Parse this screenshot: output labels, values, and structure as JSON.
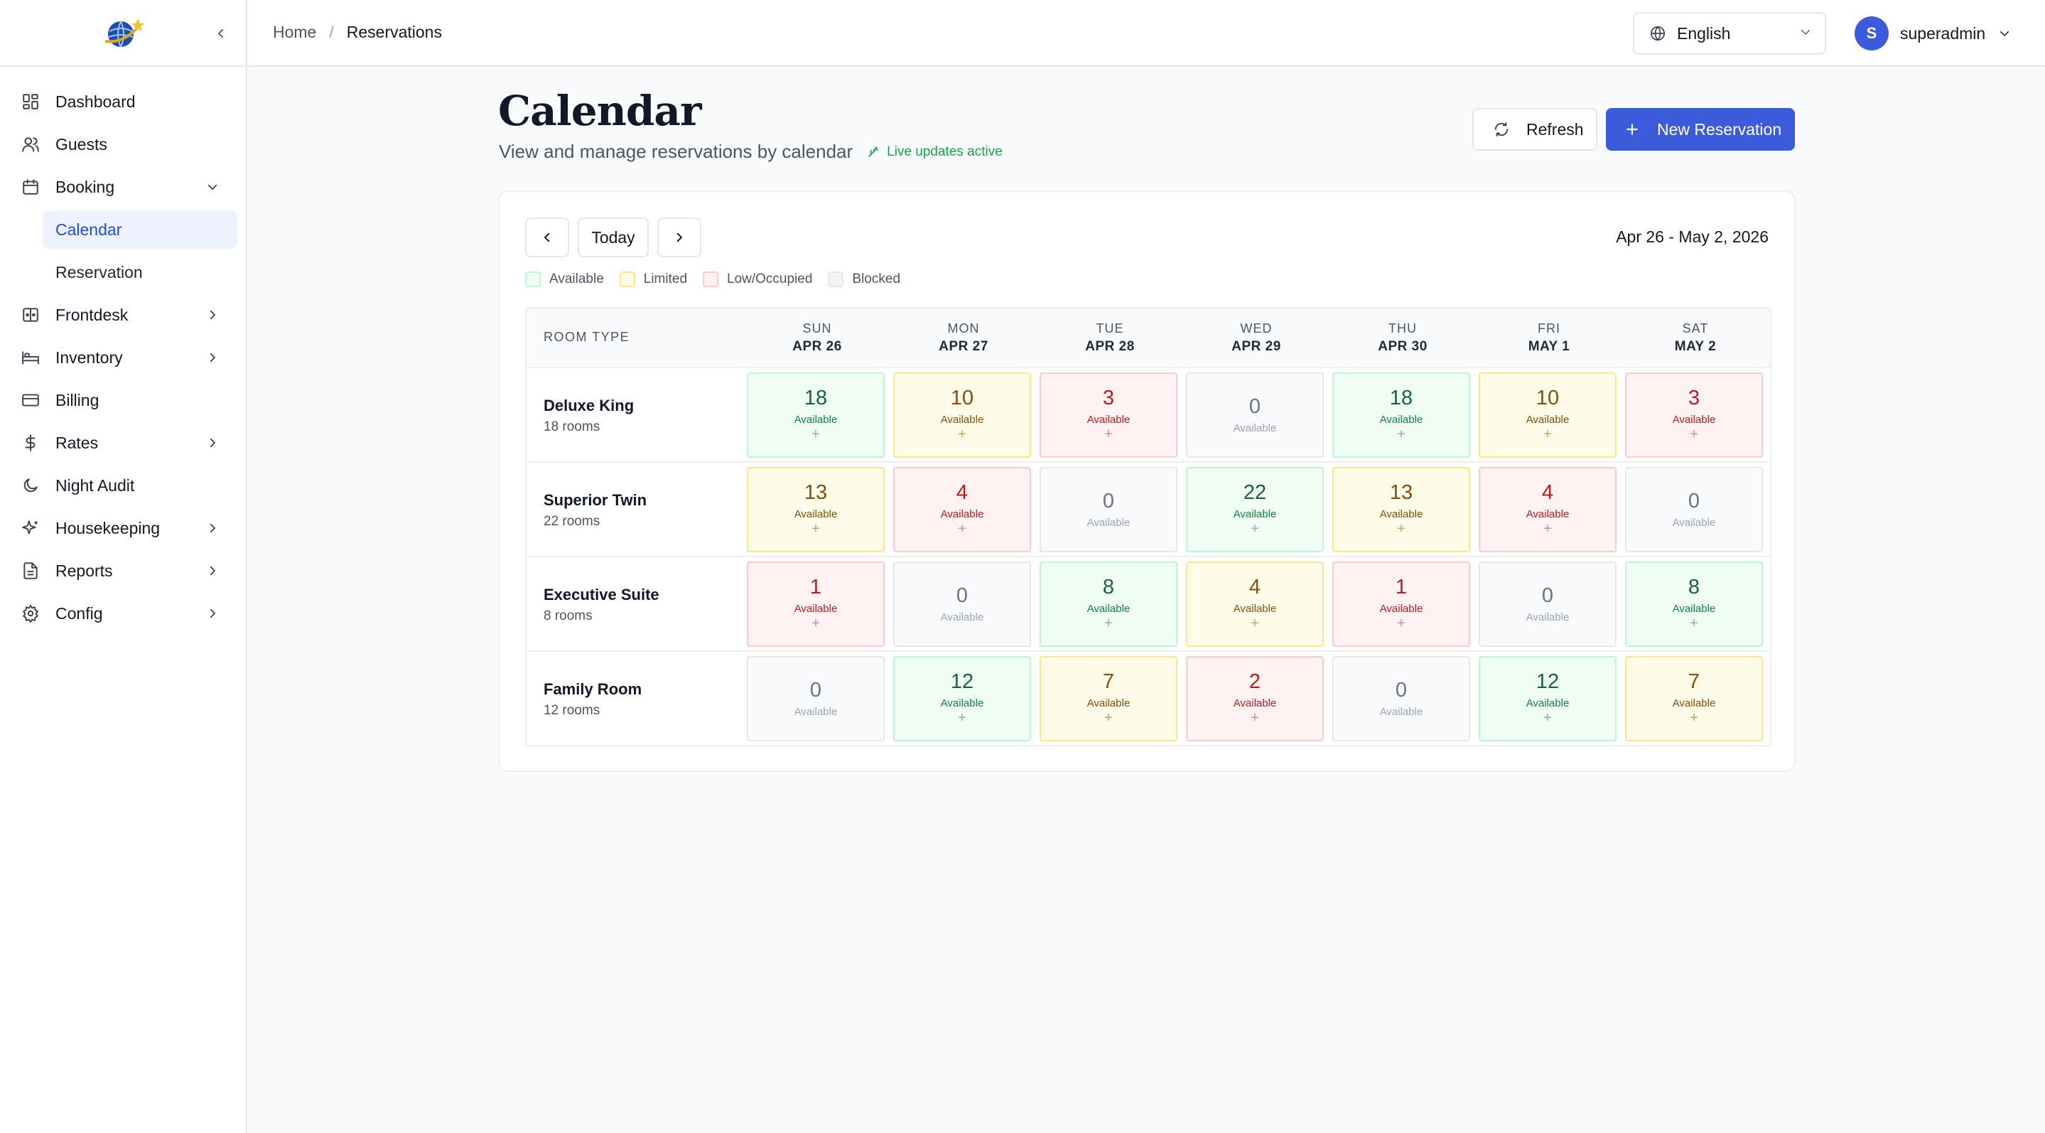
{
  "colors": {
    "primary": "#3b5bdb",
    "available": "#f0fdf4",
    "limited": "#fefce8",
    "low": "#fef2f2",
    "blocked": "#f9fafb",
    "live": "#16a34a"
  },
  "sidebar": {
    "items": [
      {
        "label": "Dashboard",
        "icon": "dashboard-icon"
      },
      {
        "label": "Guests",
        "icon": "users-icon"
      },
      {
        "label": "Booking",
        "icon": "calendar-icon",
        "expanded": true,
        "children": [
          {
            "label": "Calendar",
            "active": true
          },
          {
            "label": "Reservation"
          }
        ]
      },
      {
        "label": "Frontdesk",
        "icon": "frontdesk-icon",
        "chevron": true
      },
      {
        "label": "Inventory",
        "icon": "bed-icon",
        "chevron": true
      },
      {
        "label": "Billing",
        "icon": "credit-card-icon"
      },
      {
        "label": "Rates",
        "icon": "dollar-icon",
        "chevron": true
      },
      {
        "label": "Night Audit",
        "icon": "moon-icon"
      },
      {
        "label": "Housekeeping",
        "icon": "sparkles-icon",
        "chevron": true
      },
      {
        "label": "Reports",
        "icon": "file-text-icon",
        "chevron": true
      },
      {
        "label": "Config",
        "icon": "gear-icon",
        "chevron": true
      }
    ]
  },
  "topbar": {
    "breadcrumb_home": "Home",
    "breadcrumb_sep": "/",
    "breadcrumb_current": "Reservations",
    "language": "English",
    "user_initial": "S",
    "user_name": "superadmin"
  },
  "header": {
    "title": "Calendar",
    "subtitle": "View and manage reservations by calendar",
    "live_text": "Live updates active",
    "refresh_label": "Refresh",
    "new_label": "New Reservation"
  },
  "calendar": {
    "today_label": "Today",
    "range": "Apr 26 - May 2, 2026",
    "legend": [
      {
        "label": "Available",
        "status": "available"
      },
      {
        "label": "Limited",
        "status": "limited"
      },
      {
        "label": "Low/Occupied",
        "status": "low"
      },
      {
        "label": "Blocked",
        "status": "blocked"
      }
    ],
    "room_type_header": "ROOM TYPE",
    "days": [
      {
        "weekday": "SUN",
        "date": "APR 26"
      },
      {
        "weekday": "MON",
        "date": "APR 27"
      },
      {
        "weekday": "TUE",
        "date": "APR 28"
      },
      {
        "weekday": "WED",
        "date": "APR 29"
      },
      {
        "weekday": "THU",
        "date": "APR 30"
      },
      {
        "weekday": "FRI",
        "date": "MAY 1"
      },
      {
        "weekday": "SAT",
        "date": "MAY 2"
      }
    ],
    "cell_label": "Available",
    "rows": [
      {
        "name": "Deluxe King",
        "rooms": "18 rooms",
        "cells": [
          {
            "v": "18",
            "s": "available"
          },
          {
            "v": "10",
            "s": "limited"
          },
          {
            "v": "3",
            "s": "low"
          },
          {
            "v": "0",
            "s": "blocked"
          },
          {
            "v": "18",
            "s": "available"
          },
          {
            "v": "10",
            "s": "limited"
          },
          {
            "v": "3",
            "s": "low"
          }
        ]
      },
      {
        "name": "Superior Twin",
        "rooms": "22 rooms",
        "cells": [
          {
            "v": "13",
            "s": "limited"
          },
          {
            "v": "4",
            "s": "low"
          },
          {
            "v": "0",
            "s": "blocked"
          },
          {
            "v": "22",
            "s": "available"
          },
          {
            "v": "13",
            "s": "limited"
          },
          {
            "v": "4",
            "s": "low"
          },
          {
            "v": "0",
            "s": "blocked"
          }
        ]
      },
      {
        "name": "Executive Suite",
        "rooms": "8 rooms",
        "cells": [
          {
            "v": "1",
            "s": "low"
          },
          {
            "v": "0",
            "s": "blocked"
          },
          {
            "v": "8",
            "s": "available"
          },
          {
            "v": "4",
            "s": "limited"
          },
          {
            "v": "1",
            "s": "low"
          },
          {
            "v": "0",
            "s": "blocked"
          },
          {
            "v": "8",
            "s": "available"
          }
        ]
      },
      {
        "name": "Family Room",
        "rooms": "12 rooms",
        "cells": [
          {
            "v": "0",
            "s": "blocked"
          },
          {
            "v": "12",
            "s": "available"
          },
          {
            "v": "7",
            "s": "limited"
          },
          {
            "v": "2",
            "s": "low"
          },
          {
            "v": "0",
            "s": "blocked"
          },
          {
            "v": "12",
            "s": "available"
          },
          {
            "v": "7",
            "s": "limited"
          }
        ]
      }
    ]
  }
}
